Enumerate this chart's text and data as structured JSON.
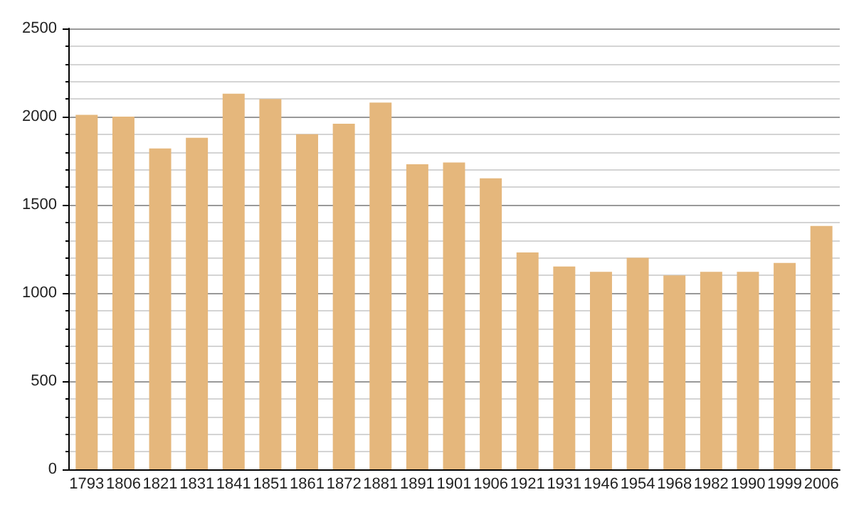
{
  "chart_data": {
    "type": "bar",
    "categories": [
      "1793",
      "1806",
      "1821",
      "1831",
      "1841",
      "1851",
      "1861",
      "1872",
      "1881",
      "1891",
      "1901",
      "1906",
      "1921",
      "1931",
      "1946",
      "1954",
      "1968",
      "1982",
      "1990",
      "1999",
      "2006"
    ],
    "values": [
      2010,
      2000,
      1820,
      1880,
      2130,
      2100,
      1900,
      1960,
      2080,
      1730,
      1740,
      1650,
      1230,
      1150,
      1120,
      1200,
      1100,
      1120,
      1120,
      1170,
      1380
    ],
    "color": "#e5b77c",
    "ylim": [
      0,
      2500
    ],
    "yticks": [
      0,
      500,
      1000,
      1500,
      2000,
      2500
    ],
    "grid": "y"
  }
}
